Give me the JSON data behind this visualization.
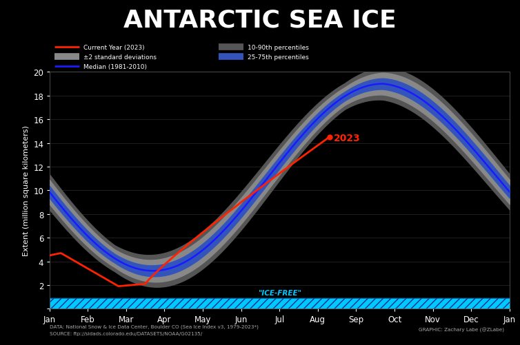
{
  "title": "ANTARCTIC SEA ICE",
  "ylabel": "Extent (million square kilometers)",
  "background_color": "#000000",
  "text_color": "#ffffff",
  "title_fontsize": 26,
  "ylim": [
    0,
    20
  ],
  "yticks": [
    0,
    2,
    4,
    6,
    8,
    10,
    12,
    14,
    16,
    18,
    20
  ],
  "months": [
    "Jan",
    "Feb",
    "Mar",
    "Apr",
    "May",
    "Jun",
    "Jul",
    "Aug",
    "Sep",
    "Oct",
    "Nov",
    "Dec",
    "Jan"
  ],
  "median_color": "#1a1aff",
  "current_year_color": "#ff2200",
  "band_2std_color": "#888888",
  "band_1090_color": "#555555",
  "band_2575_color": "#3355bb",
  "ice_free_fill_color": "#00c8ff",
  "ice_free_hatch_edge": "#003388",
  "annotation_2023_color": "#ff2200",
  "data_text": "DATA: National Snow & Ice Data Center, Boulder CO (Sea Ice Index v3, 1979-2023*)",
  "source_text": "SOURCE: ftp://sidads.colorado.edu/DATASETS/NOAA/G02135/",
  "graphic_text": "GRAPHIC: Zachary Labe (@ZLabe)",
  "legend_items_left": [
    {
      "label": "Current Year (2023)",
      "color": "#ff2200",
      "lw": 2.0,
      "type": "line"
    },
    {
      "label": "±2 standard deviations",
      "color": "#888888",
      "lw": 7,
      "type": "line"
    },
    {
      "label": "Median (1981-2010)",
      "color": "#1a1aff",
      "lw": 2.0,
      "type": "line"
    }
  ],
  "legend_items_right": [
    {
      "label": "10-90th percentiles",
      "color": "#555555",
      "lw": 7,
      "type": "line"
    },
    {
      "label": "25-75th percentiles",
      "color": "#3355bb",
      "lw": 7,
      "type": "line"
    }
  ]
}
